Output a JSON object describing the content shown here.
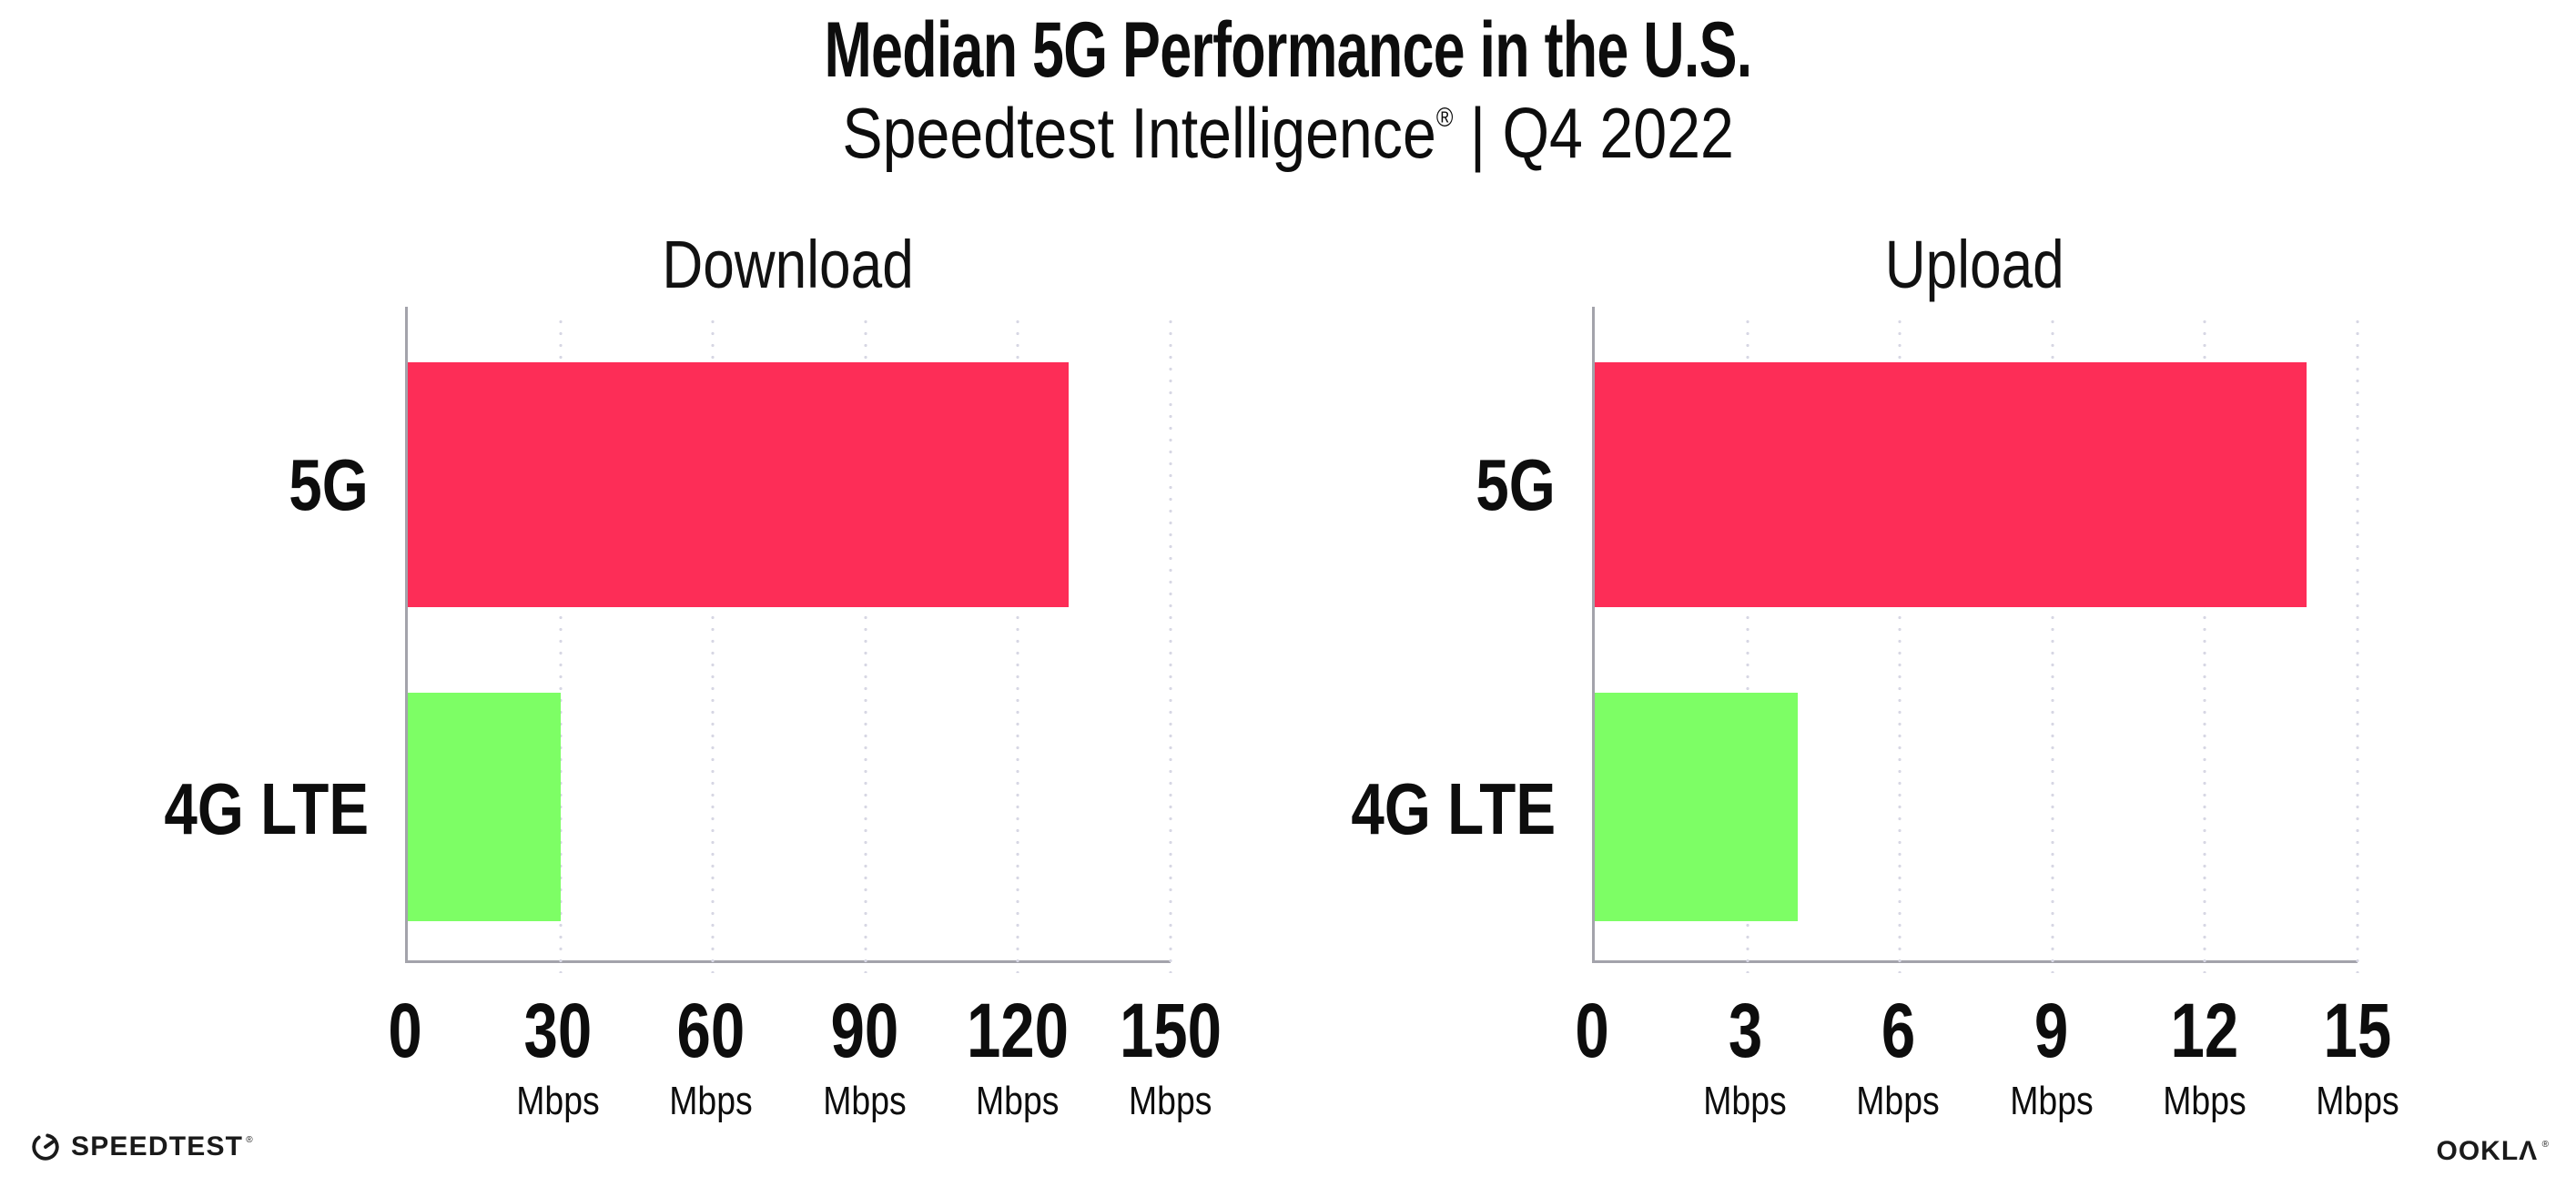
{
  "header": {
    "title": "Median 5G Performance in the U.S.",
    "subtitle_brand": "Speedtest Intelligence",
    "subtitle_reg": "®",
    "subtitle_rest": " | Q4 2022"
  },
  "chart_data": [
    {
      "type": "bar",
      "orientation": "horizontal",
      "title": "Download",
      "categories": [
        "5G",
        "4G LTE"
      ],
      "values": [
        130,
        30
      ],
      "unit": "Mbps",
      "xlim": [
        0,
        150
      ],
      "xticks": [
        0,
        30,
        60,
        90,
        120,
        150
      ],
      "tick_unit_label": "Mbps",
      "bar_colors": [
        "#fd2d57",
        "#7dfe65"
      ],
      "grid": "dotted-vertical",
      "legend": "none"
    },
    {
      "type": "bar",
      "orientation": "horizontal",
      "title": "Upload",
      "categories": [
        "5G",
        "4G LTE"
      ],
      "values": [
        14,
        4
      ],
      "unit": "Mbps",
      "xlim": [
        0,
        15
      ],
      "xticks": [
        0,
        3,
        6,
        9,
        12,
        15
      ],
      "tick_unit_label": "Mbps",
      "bar_colors": [
        "#fd2d57",
        "#7dfe65"
      ],
      "grid": "dotted-vertical",
      "legend": "none"
    }
  ],
  "footer": {
    "speedtest_label": "SPEEDTEST",
    "speedtest_mark": "®",
    "ookla_label": "OOKLΛ",
    "ookla_mark": "®"
  },
  "colors": {
    "bar_5g": "#fd2d57",
    "bar_4g_lte": "#7dfe65",
    "axis_line": "#a3a3ab",
    "grid_dot": "#d7d7e4",
    "text": "#0d0d0d"
  }
}
